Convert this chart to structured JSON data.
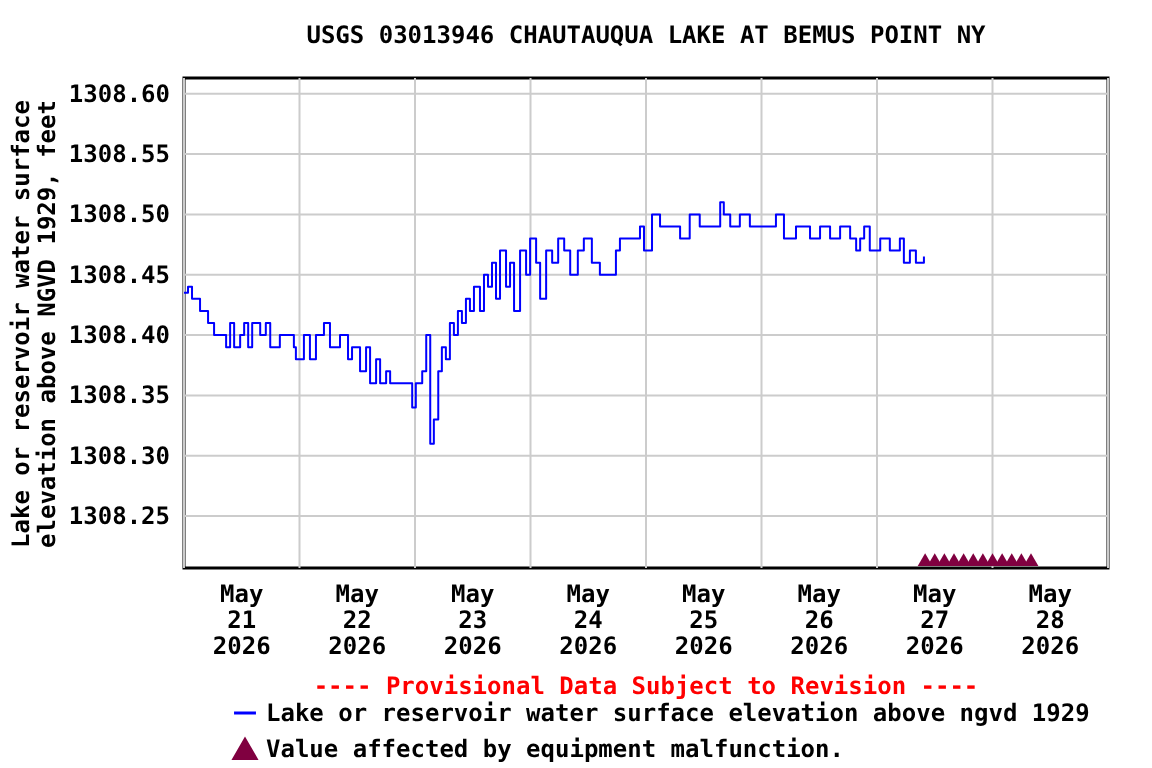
{
  "chart_data": {
    "type": "line",
    "title": "USGS 03013946 CHAUTAUQUA LAKE AT BEMUS POINT NY",
    "ylabel": "Lake or reservoir water surface\nelevation above NGVD 1929, feet",
    "annotations": [
      "---- Provisional Data Subject to Revision ----"
    ],
    "xlim": [
      "2026-05-21T00:00",
      "2026-05-29T00:00"
    ],
    "xticks": [
      {
        "value": "2026-05-21T00:00",
        "label": null
      },
      {
        "value": "2026-05-21T12:00",
        "label": "May\n21\n2026"
      },
      {
        "value": "2026-05-22T00:00",
        "label": null
      },
      {
        "value": "2026-05-22T12:00",
        "label": "May\n22\n2026"
      },
      {
        "value": "2026-05-23T00:00",
        "label": null
      },
      {
        "value": "2026-05-23T12:00",
        "label": "May\n23\n2026"
      },
      {
        "value": "2026-05-24T00:00",
        "label": null
      },
      {
        "value": "2026-05-24T12:00",
        "label": "May\n24\n2026"
      },
      {
        "value": "2026-05-25T00:00",
        "label": null
      },
      {
        "value": "2026-05-25T12:00",
        "label": "May\n25\n2026"
      },
      {
        "value": "2026-05-26T00:00",
        "label": null
      },
      {
        "value": "2026-05-26T12:00",
        "label": "May\n26\n2026"
      },
      {
        "value": "2026-05-27T00:00",
        "label": null
      },
      {
        "value": "2026-05-27T12:00",
        "label": "May\n27\n2026"
      },
      {
        "value": "2026-05-28T00:00",
        "label": null
      },
      {
        "value": "2026-05-28T12:00",
        "label": "May\n28\n2026"
      },
      {
        "value": "2026-05-29T00:00",
        "label": null
      }
    ],
    "ylim": [
      1308.207,
      1308.613
    ],
    "yticks": [
      1308.25,
      {
        "value": 1308.3,
        "label": "1308.30"
      },
      1308.35,
      {
        "value": 1308.4,
        "label": "1308.40"
      },
      1308.45,
      {
        "value": 1308.5,
        "label": "1308.50"
      },
      1308.55,
      {
        "value": 1308.6,
        "label": "1308.60"
      }
    ],
    "grid": true,
    "legend": "bottom",
    "series": [
      {
        "name": "Lake or reservoir water surface elevation above ngvd 1929",
        "type": "step",
        "color": "#0000ff",
        "marker": "none",
        "x": [
          "2026-05-21T00:00",
          "2026-05-21T00:50",
          "2026-05-21T01:40",
          "2026-05-21T03:20",
          "2026-05-21T05:00",
          "2026-05-21T06:15",
          "2026-05-21T08:20",
          "2026-05-21T08:45",
          "2026-05-21T09:35",
          "2026-05-21T10:25",
          "2026-05-21T11:40",
          "2026-05-21T12:30",
          "2026-05-21T13:20",
          "2026-05-21T14:10",
          "2026-05-21T15:50",
          "2026-05-21T17:00",
          "2026-05-21T17:55",
          "2026-05-21T19:55",
          "2026-05-21T22:50",
          "2026-05-21T23:15",
          "2026-05-22T00:55",
          "2026-05-22T02:10",
          "2026-05-22T03:25",
          "2026-05-22T05:05",
          "2026-05-22T06:20",
          "2026-05-22T08:25",
          "2026-05-22T10:05",
          "2026-05-22T10:55",
          "2026-05-22T12:35",
          "2026-05-22T13:50",
          "2026-05-22T14:40",
          "2026-05-22T15:55",
          "2026-05-22T16:45",
          "2026-05-22T18:00",
          "2026-05-22T18:50",
          "2026-05-22T20:55",
          "2026-05-22T22:30",
          "2026-05-22T23:25",
          "2026-05-23T00:10",
          "2026-05-23T01:30",
          "2026-05-23T02:20",
          "2026-05-23T03:10",
          "2026-05-23T03:55",
          "2026-05-23T04:50",
          "2026-05-23T05:35",
          "2026-05-23T06:25",
          "2026-05-23T07:15",
          "2026-05-23T08:05",
          "2026-05-23T08:55",
          "2026-05-23T09:45",
          "2026-05-23T10:35",
          "2026-05-23T11:25",
          "2026-05-23T12:15",
          "2026-05-23T13:30",
          "2026-05-23T14:20",
          "2026-05-23T15:10",
          "2026-05-23T16:00",
          "2026-05-23T16:50",
          "2026-05-23T17:40",
          "2026-05-23T18:55",
          "2026-05-23T19:45",
          "2026-05-23T20:35",
          "2026-05-23T21:50",
          "2026-05-23T23:05",
          "2026-05-23T23:55",
          "2026-05-24T01:10",
          "2026-05-24T02:00",
          "2026-05-24T03:15",
          "2026-05-24T04:30",
          "2026-05-24T05:45",
          "2026-05-24T07:00",
          "2026-05-24T08:15",
          "2026-05-24T09:50",
          "2026-05-24T11:05",
          "2026-05-24T12:45",
          "2026-05-24T14:25",
          "2026-05-24T17:45",
          "2026-05-24T18:35",
          "2026-05-24T20:40",
          "2026-05-24T22:45",
          "2026-05-24T23:35",
          "2026-05-25T01:15",
          "2026-05-25T02:55",
          "2026-05-25T05:25",
          "2026-05-25T07:05",
          "2026-05-25T09:05",
          "2026-05-25T11:10",
          "2026-05-25T15:25",
          "2026-05-25T16:10",
          "2026-05-25T17:30",
          "2026-05-25T19:30",
          "2026-05-25T21:35",
          "2026-05-26T01:45",
          "2026-05-26T03:00",
          "2026-05-26T04:40",
          "2026-05-26T07:10",
          "2026-05-26T10:05",
          "2026-05-26T12:10",
          "2026-05-26T14:15",
          "2026-05-26T16:20",
          "2026-05-26T18:25",
          "2026-05-26T19:40",
          "2026-05-26T20:30",
          "2026-05-26T21:20",
          "2026-05-26T22:30",
          "2026-05-27T00:40",
          "2026-05-27T02:40",
          "2026-05-27T04:45",
          "2026-05-27T05:35",
          "2026-05-27T06:50",
          "2026-05-27T08:05",
          "2026-05-27T09:45"
        ],
        "values": [
          1308.435,
          1308.44,
          1308.43,
          1308.42,
          1308.41,
          1308.4,
          1308.4,
          1308.39,
          1308.41,
          1308.39,
          1308.4,
          1308.41,
          1308.39,
          1308.41,
          1308.4,
          1308.41,
          1308.39,
          1308.4,
          1308.39,
          1308.38,
          1308.4,
          1308.38,
          1308.4,
          1308.41,
          1308.39,
          1308.4,
          1308.38,
          1308.39,
          1308.37,
          1308.39,
          1308.36,
          1308.38,
          1308.36,
          1308.37,
          1308.36,
          1308.36,
          1308.36,
          1308.34,
          1308.36,
          1308.37,
          1308.4,
          1308.31,
          1308.33,
          1308.37,
          1308.39,
          1308.38,
          1308.41,
          1308.4,
          1308.42,
          1308.41,
          1308.43,
          1308.42,
          1308.44,
          1308.42,
          1308.45,
          1308.44,
          1308.46,
          1308.43,
          1308.47,
          1308.44,
          1308.46,
          1308.42,
          1308.47,
          1308.45,
          1308.48,
          1308.46,
          1308.43,
          1308.47,
          1308.46,
          1308.48,
          1308.47,
          1308.45,
          1308.47,
          1308.48,
          1308.46,
          1308.45,
          1308.47,
          1308.48,
          1308.48,
          1308.49,
          1308.47,
          1308.5,
          1308.49,
          1308.49,
          1308.48,
          1308.5,
          1308.49,
          1308.51,
          1308.5,
          1308.49,
          1308.5,
          1308.49,
          1308.49,
          1308.5,
          1308.48,
          1308.49,
          1308.48,
          1308.49,
          1308.48,
          1308.49,
          1308.48,
          1308.47,
          1308.48,
          1308.49,
          1308.47,
          1308.48,
          1308.47,
          1308.48,
          1308.46,
          1308.47,
          1308.46,
          1308.465
        ]
      },
      {
        "name": "Value affected by equipment malfunction.",
        "type": "scatter",
        "color": "#800040",
        "marker": "triangle",
        "x": [
          "2026-05-27T10:00",
          "2026-05-27T12:00",
          "2026-05-27T14:00",
          "2026-05-27T16:00",
          "2026-05-27T18:00",
          "2026-05-27T20:00",
          "2026-05-27T22:00",
          "2026-05-28T00:00",
          "2026-05-28T02:00",
          "2026-05-28T04:00",
          "2026-05-28T06:00",
          "2026-05-28T08:00"
        ],
        "values": [
          1308.214,
          1308.214,
          1308.214,
          1308.214,
          1308.214,
          1308.214,
          1308.214,
          1308.214,
          1308.214,
          1308.214,
          1308.214,
          1308.214
        ]
      }
    ]
  }
}
